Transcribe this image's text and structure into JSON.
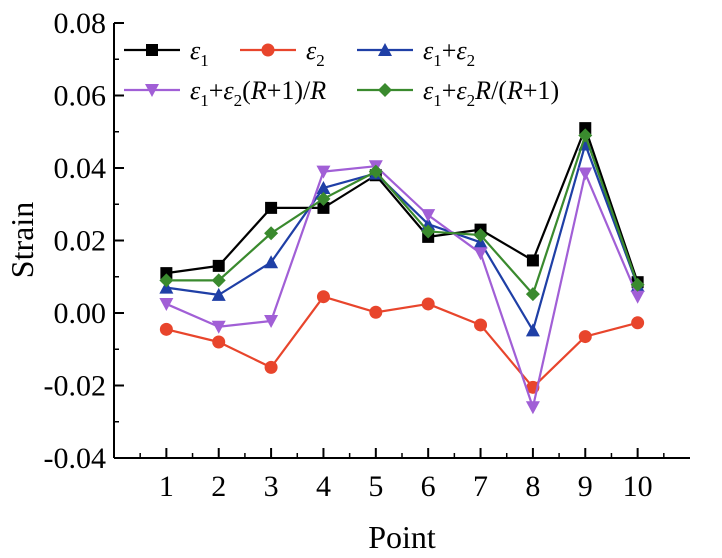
{
  "chart_data": {
    "type": "line",
    "xlabel": "Point",
    "ylabel": "Strain",
    "x": [
      1,
      2,
      3,
      4,
      5,
      6,
      7,
      8,
      9,
      10
    ],
    "xlim": [
      0,
      11
    ],
    "ylim": [
      -0.04,
      0.08
    ],
    "y_ticks": [
      -0.04,
      -0.02,
      0.0,
      0.02,
      0.04,
      0.06,
      0.08
    ],
    "y_tick_labels": [
      "-0.04",
      "-0.02",
      "0.00",
      "0.02",
      "0.04",
      "0.06",
      "0.08"
    ],
    "x_ticks": [
      1,
      2,
      3,
      4,
      5,
      6,
      7,
      8,
      9,
      10
    ],
    "x_tick_labels": [
      "1",
      "2",
      "3",
      "4",
      "5",
      "6",
      "7",
      "8",
      "9",
      "10"
    ],
    "grid": false,
    "legend_position": "top-left",
    "series": [
      {
        "name": "ε1",
        "legend": [
          "ε",
          "1",
          "",
          "",
          "",
          "",
          ""
        ],
        "color": "#000000",
        "marker": "square",
        "values": [
          0.011,
          0.013,
          0.029,
          0.029,
          0.038,
          0.021,
          0.023,
          0.0145,
          0.051,
          0.0085
        ]
      },
      {
        "name": "ε2",
        "legend": [
          "ε",
          "2",
          "",
          "",
          "",
          "",
          ""
        ],
        "color": "#e8452c",
        "marker": "circle",
        "values": [
          -0.0045,
          -0.008,
          -0.015,
          0.0045,
          0.0002,
          0.0025,
          -0.0033,
          -0.0205,
          -0.0065,
          -0.0027
        ]
      },
      {
        "name": "ε1+ε2",
        "legend": [
          "ε",
          "1",
          "+",
          "ε",
          "2",
          "",
          ""
        ],
        "color": "#1f3fa6",
        "marker": "triangle-up",
        "values": [
          0.007,
          0.005,
          0.014,
          0.0345,
          0.0385,
          0.0245,
          0.0195,
          -0.0048,
          0.0465,
          0.0075
        ]
      },
      {
        "name": "ε1+ε2(R+1)/R",
        "legend": [
          "ε",
          "1",
          "+",
          "ε",
          "2",
          "(",
          "R",
          "+1)/",
          "R"
        ],
        "color": "#a15fd6",
        "marker": "triangle-down",
        "values": [
          0.0025,
          -0.0038,
          -0.0022,
          0.039,
          0.0405,
          0.027,
          0.0165,
          -0.026,
          0.0385,
          0.0045
        ]
      },
      {
        "name": "ε1+ε2R/(R+1)",
        "legend": [
          "ε",
          "1",
          "+",
          "ε",
          "2",
          "R",
          "/(",
          "R",
          "+1)"
        ],
        "color": "#3a8a2e",
        "marker": "diamond",
        "values": [
          0.009,
          0.009,
          0.022,
          0.0315,
          0.039,
          0.0225,
          0.0215,
          0.0052,
          0.049,
          0.0078
        ]
      }
    ]
  }
}
